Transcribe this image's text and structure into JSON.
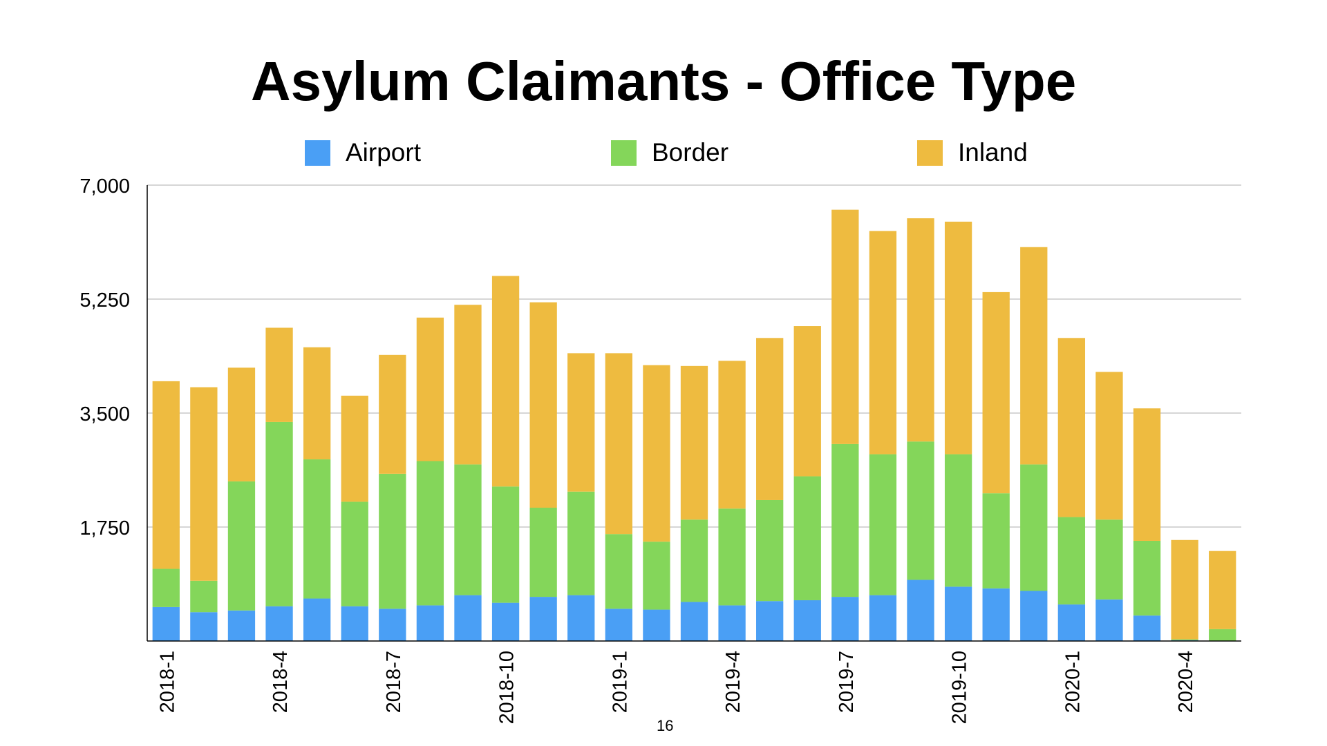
{
  "chart_data": {
    "type": "bar",
    "stacked": true,
    "title": "Asylum Claimants - Office Type",
    "xlabel": "",
    "ylabel": "",
    "ylim": [
      0,
      7000
    ],
    "yticks": [
      "7,000",
      "5,250",
      "3,500",
      "1,750"
    ],
    "ytick_values": [
      7000,
      5250,
      3500,
      1750
    ],
    "grid": true,
    "legend_position": "top",
    "categories": [
      "2018-1",
      "2018-2",
      "2018-3",
      "2018-4",
      "2018-5",
      "2018-6",
      "2018-7",
      "2018-8",
      "2018-9",
      "2018-10",
      "2018-11",
      "2018-12",
      "2019-1",
      "2019-2",
      "2019-3",
      "2019-4",
      "2019-5",
      "2019-6",
      "2019-7",
      "2019-8",
      "2019-9",
      "2019-10",
      "2019-11",
      "2019-12",
      "2020-1",
      "2020-2",
      "2020-3",
      "2020-4",
      "2020-5"
    ],
    "shown_tick_labels": [
      "2018-1",
      "2018-4",
      "2018-7",
      "2018-10",
      "2019-1",
      "2019-4",
      "2019-7",
      "2019-10",
      "2020-1",
      "2020-4"
    ],
    "series": [
      {
        "name": "Airport",
        "color": "#4a9ff5",
        "values": [
          521,
          443,
          469,
          534,
          652,
          534,
          495,
          547,
          704,
          587,
          678,
          704,
          495,
          482,
          600,
          547,
          613,
          626,
          678,
          704,
          939,
          834,
          808,
          769,
          561,
          639,
          391,
          13,
          5
        ]
      },
      {
        "name": "Border",
        "color": "#84d65a",
        "values": [
          587,
          482,
          1982,
          2829,
          2137,
          1604,
          2073,
          2216,
          2007,
          1785,
          1369,
          1590,
          1147,
          1043,
          1264,
          1486,
          1551,
          1903,
          2346,
          2164,
          2124,
          2034,
          1460,
          1942,
          1342,
          1225,
          1147,
          13,
          177
        ]
      },
      {
        "name": "Inland",
        "color": "#eebb40",
        "values": [
          2881,
          2972,
          1746,
          1447,
          1721,
          1629,
          1825,
          2203,
          2451,
          3233,
          3154,
          2125,
          2777,
          2711,
          2359,
          2269,
          2489,
          2307,
          3598,
          3428,
          3428,
          3571,
          3089,
          3337,
          2750,
          2268,
          2034,
          1525,
          1200
        ]
      }
    ]
  },
  "page_number": "16"
}
